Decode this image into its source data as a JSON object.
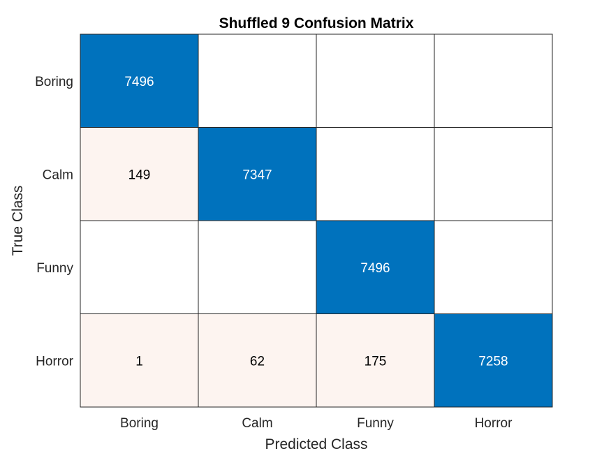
{
  "chart_data": {
    "type": "heatmap",
    "title": "Shuffled 9 Confusion Matrix",
    "xlabel": "Predicted Class",
    "ylabel": "True Class",
    "x_categories": [
      "Boring",
      "Calm",
      "Funny",
      "Horror"
    ],
    "y_categories": [
      "Boring",
      "Calm",
      "Funny",
      "Horror"
    ],
    "values": [
      [
        7496,
        null,
        null,
        null
      ],
      [
        149,
        7347,
        null,
        null
      ],
      [
        null,
        null,
        7496,
        null
      ],
      [
        1,
        62,
        175,
        7258
      ]
    ],
    "colors": {
      "diagonal": "#0072BD",
      "off_diagonal": "#FDF4F0",
      "empty": "#FFFFFF",
      "grid": "#262626",
      "diagonal_text": "#FFFFFF",
      "off_diagonal_text": "#000000"
    }
  }
}
